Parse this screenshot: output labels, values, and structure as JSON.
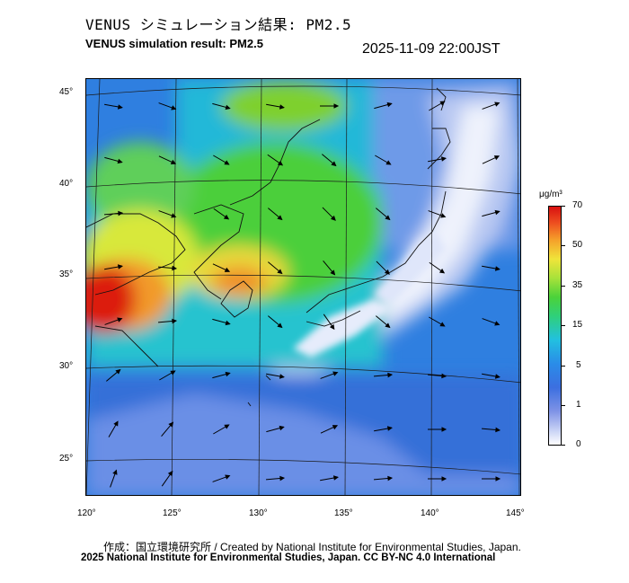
{
  "header": {
    "title_ja": "VENUS シミュレーション結果: PM2.5",
    "title_en": "VENUS simulation result: PM2.5",
    "timestamp": "2025-11-09 22:00JST"
  },
  "map": {
    "latitude_labels": [
      "45°",
      "40°",
      "35°",
      "30°",
      "25°"
    ],
    "longitude_labels": [
      "120°",
      "125°",
      "130°",
      "135°",
      "140°",
      "145°"
    ]
  },
  "colorbar": {
    "unit": "μg/m³",
    "levels": [
      "70",
      "50",
      "35",
      "15",
      "5",
      "1",
      "0"
    ],
    "colors": {
      "low": "#ffffff",
      "lightblue": "#7f93e6",
      "blue": "#2a8ce8",
      "cyan": "#22c0e0",
      "green": "#4bd23a",
      "yellow": "#f0e43a",
      "orange": "#f5a02a",
      "red": "#d81010"
    }
  },
  "footer": {
    "credit_line1": "作成：国立環境研究所 / Created by National Institute for Environmental Studies, Japan.",
    "credit_line2": "2025 National Institute for Environmental Studies, Japan. CC BY-NC 4.0 International"
  }
}
